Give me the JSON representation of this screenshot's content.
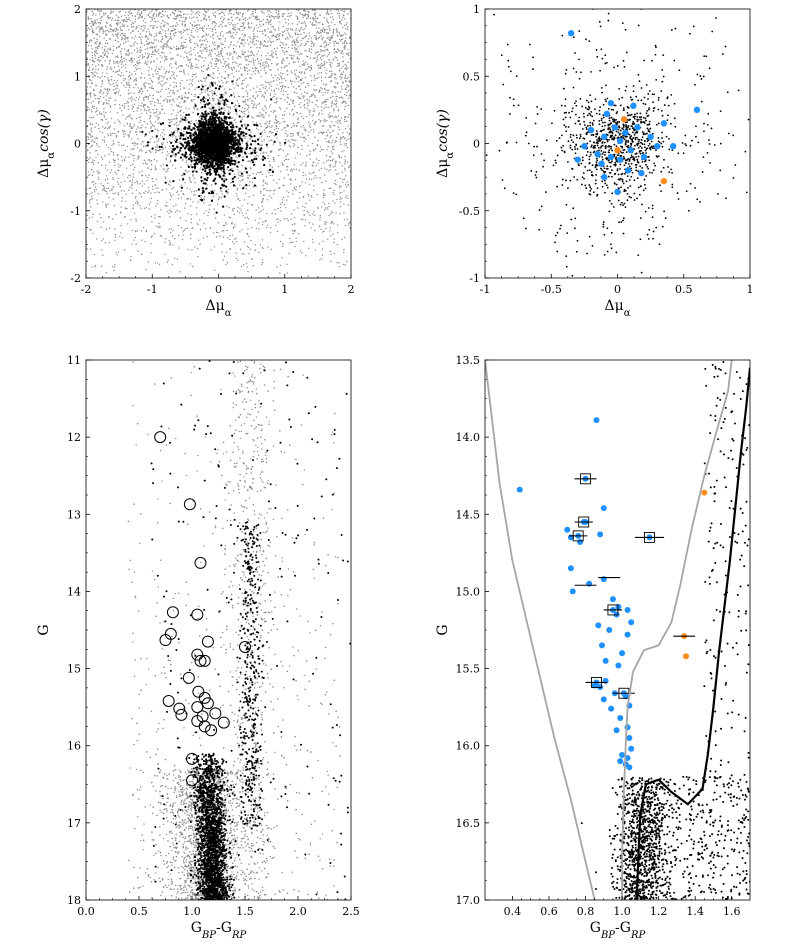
{
  "colors": {
    "field": "#8c8c8c",
    "member": "#000000",
    "blue": "#1e90ff",
    "orange": "#ff8c1a",
    "isochrone_gray": "#a6a6a6",
    "isochrone_black": "#000000"
  },
  "chart_data": [
    {
      "id": "p1",
      "type": "scatter",
      "xlabel": "Δμ_α",
      "ylabel": "Δμ_α cos(γ)",
      "xlim": [
        -2,
        2
      ],
      "ylim": [
        -2,
        2
      ],
      "xticks": [
        "-2",
        "-1",
        "0",
        "1",
        "2"
      ],
      "yticks": [
        "-2",
        "-1",
        "0",
        "1",
        "2"
      ],
      "series": [
        {
          "role": "field",
          "color": "#8c8c8c",
          "center": [
            0,
            0
          ],
          "spread": 2.2,
          "count": 5000,
          "uniform": true
        },
        {
          "role": "members",
          "color": "#000000",
          "center": [
            -0.08,
            0.0
          ],
          "spread": 0.28,
          "count": 2200
        }
      ]
    },
    {
      "id": "p2",
      "type": "scatter",
      "xlabel": "Δμ_α",
      "ylabel": "Δμ_α cos(γ)",
      "xlim": [
        -1,
        1
      ],
      "ylim": [
        -1,
        1
      ],
      "xticks": [
        "-1",
        "-0.5",
        "0",
        "0.5",
        "1"
      ],
      "yticks": [
        "-1",
        "-0.5",
        "0",
        "0.5",
        "1"
      ],
      "series": [
        {
          "role": "members",
          "color": "#000000",
          "center": [
            0,
            0
          ],
          "spread": 0.35,
          "count": 1100
        },
        {
          "role": "blue",
          "color": "#1e90ff",
          "points": [
            [
              -0.35,
              0.82
            ],
            [
              0.6,
              0.25
            ],
            [
              -0.1,
              0.05
            ],
            [
              -0.05,
              -0.1
            ],
            [
              0.02,
              0.02
            ],
            [
              0.1,
              -0.05
            ],
            [
              0.15,
              0.12
            ],
            [
              -0.15,
              -0.08
            ],
            [
              0.05,
              0.18
            ],
            [
              -0.08,
              0.22
            ],
            [
              0.2,
              -0.1
            ],
            [
              -0.2,
              0.1
            ],
            [
              0.08,
              -0.2
            ],
            [
              -0.12,
              -0.15
            ],
            [
              0.25,
              0.05
            ],
            [
              0.3,
              -0.02
            ],
            [
              -0.25,
              -0.02
            ],
            [
              0.0,
              -0.36
            ],
            [
              0.12,
              0.28
            ],
            [
              -0.05,
              0.3
            ],
            [
              0.35,
              0.15
            ],
            [
              -0.3,
              -0.12
            ],
            [
              0.18,
              -0.22
            ],
            [
              0.42,
              -0.02
            ],
            [
              -0.1,
              -0.25
            ],
            [
              0.02,
              -0.12
            ],
            [
              0.06,
              0.08
            ],
            [
              -0.02,
              0.12
            ]
          ]
        },
        {
          "role": "orange",
          "color": "#ff8c1a",
          "points": [
            [
              0.05,
              0.18
            ],
            [
              0.35,
              -0.28
            ],
            [
              0.0,
              -0.05
            ]
          ]
        }
      ]
    },
    {
      "id": "p3",
      "type": "scatter",
      "xlabel": "G_BP-G_RP",
      "ylabel": "G",
      "xlim": [
        0.0,
        2.5
      ],
      "ylim": [
        18,
        11
      ],
      "xticks": [
        "0.0",
        "0.5",
        "1.0",
        "1.5",
        "2.0",
        "2.5"
      ],
      "yticks": [
        "11",
        "12",
        "13",
        "14",
        "15",
        "16",
        "17",
        "18"
      ],
      "series": [
        {
          "role": "field",
          "color": "#8c8c8c",
          "count": 4500
        },
        {
          "role": "members",
          "color": "#000000",
          "count": 2600
        },
        {
          "role": "circled",
          "color": "#000000",
          "points": [
            [
              0.7,
              12.0
            ],
            [
              0.98,
              12.87
            ],
            [
              1.08,
              13.63
            ],
            [
              0.82,
              14.27
            ],
            [
              1.05,
              14.3
            ],
            [
              0.8,
              14.55
            ],
            [
              0.75,
              14.63
            ],
            [
              1.15,
              14.65
            ],
            [
              1.5,
              14.72
            ],
            [
              1.05,
              14.82
            ],
            [
              1.08,
              14.9
            ],
            [
              1.12,
              14.9
            ],
            [
              0.97,
              15.12
            ],
            [
              1.06,
              15.3
            ],
            [
              1.12,
              15.38
            ],
            [
              1.15,
              15.45
            ],
            [
              0.78,
              15.42
            ],
            [
              0.88,
              15.52
            ],
            [
              0.9,
              15.6
            ],
            [
              1.05,
              15.5
            ],
            [
              1.22,
              15.58
            ],
            [
              1.1,
              15.62
            ],
            [
              1.05,
              15.68
            ],
            [
              1.3,
              15.7
            ],
            [
              1.12,
              15.75
            ],
            [
              1.18,
              15.8
            ],
            [
              1.0,
              16.17
            ],
            [
              1.0,
              16.45
            ]
          ]
        }
      ]
    },
    {
      "id": "p4",
      "type": "scatter",
      "xlabel": "G_BP-G_RP",
      "ylabel": "G",
      "xlim": [
        0.25,
        1.7
      ],
      "ylim": [
        17.0,
        13.5
      ],
      "xticks": [
        "0.4",
        "0.6",
        "0.8",
        "1.0",
        "1.2",
        "1.4",
        "1.6"
      ],
      "yticks": [
        "13.5",
        "14.0",
        "14.5",
        "15.0",
        "15.5",
        "16.0",
        "16.5",
        "17.0"
      ],
      "series": [
        {
          "role": "members",
          "color": "#000000",
          "count": 1500
        },
        {
          "role": "blue",
          "color": "#1e90ff",
          "points": [
            [
              0.86,
              13.89
            ],
            [
              0.44,
              14.34
            ],
            [
              0.8,
              14.55
            ],
            [
              0.9,
              14.46
            ],
            [
              0.7,
              14.6
            ],
            [
              0.72,
              14.65
            ],
            [
              0.77,
              14.68
            ],
            [
              0.88,
              14.63
            ],
            [
              0.72,
              14.85
            ],
            [
              0.73,
              15.0
            ],
            [
              0.82,
              14.95
            ],
            [
              0.9,
              14.92
            ],
            [
              0.95,
              15.05
            ],
            [
              0.98,
              15.1
            ],
            [
              0.97,
              15.15
            ],
            [
              1.03,
              15.12
            ],
            [
              1.05,
              15.2
            ],
            [
              0.87,
              15.22
            ],
            [
              0.93,
              15.25
            ],
            [
              1.03,
              15.28
            ],
            [
              0.89,
              15.35
            ],
            [
              0.91,
              15.45
            ],
            [
              0.98,
              15.48
            ],
            [
              1.0,
              15.4
            ],
            [
              0.88,
              15.62
            ],
            [
              0.9,
              15.7
            ],
            [
              0.96,
              15.66
            ],
            [
              1.02,
              15.68
            ],
            [
              1.04,
              15.74
            ],
            [
              0.94,
              15.76
            ],
            [
              0.99,
              15.82
            ],
            [
              1.03,
              15.88
            ],
            [
              0.97,
              15.9
            ],
            [
              1.04,
              15.95
            ],
            [
              1.05,
              16.02
            ],
            [
              1.03,
              16.08
            ],
            [
              1.02,
              16.12
            ],
            [
              0.99,
              16.1
            ],
            [
              1.04,
              16.14
            ],
            [
              1.0,
              16.06
            ],
            [
              0.85,
              15.61
            ],
            [
              0.91,
              15.58
            ]
          ]
        },
        {
          "role": "orange",
          "color": "#ff8c1a",
          "points": [
            [
              1.45,
              14.36
            ],
            [
              1.34,
              15.29
            ],
            [
              1.35,
              15.42
            ]
          ]
        },
        {
          "role": "boxed",
          "color": "#1e90ff",
          "points": [
            [
              0.8,
              14.27
            ],
            [
              0.79,
              14.55
            ],
            [
              0.76,
              14.64
            ],
            [
              1.15,
              14.65
            ],
            [
              0.95,
              15.12
            ],
            [
              0.86,
              15.59
            ],
            [
              1.01,
              15.66
            ]
          ]
        },
        {
          "role": "errorbars",
          "points": [
            [
              0.8,
              14.27,
              0.06
            ],
            [
              0.79,
              14.55,
              0.05
            ],
            [
              0.76,
              14.64,
              0.05
            ],
            [
              1.15,
              14.65,
              0.08
            ],
            [
              0.95,
              15.12,
              0.05
            ],
            [
              0.86,
              15.59,
              0.06
            ],
            [
              1.01,
              15.66,
              0.06
            ],
            [
              0.8,
              14.96,
              0.06
            ],
            [
              0.93,
              14.91,
              0.06
            ],
            [
              1.34,
              15.29,
              0.06
            ]
          ]
        }
      ],
      "curves": [
        {
          "name": "",
          "color": "#a6a6a6",
          "points": [
            [
              0.25,
              13.5
            ],
            [
              0.28,
              13.8
            ],
            [
              0.33,
              14.3
            ],
            [
              0.4,
              14.8
            ],
            [
              0.48,
              15.2
            ],
            [
              0.55,
              15.55
            ],
            [
              0.63,
              15.95
            ],
            [
              0.72,
              16.35
            ],
            [
              0.8,
              16.75
            ],
            [
              0.85,
              17.0
            ]
          ]
        },
        {
          "name": "",
          "color": "#a6a6a6",
          "points": [
            [
              1.6,
              13.5
            ],
            [
              1.58,
              13.7
            ],
            [
              1.52,
              13.95
            ],
            [
              1.45,
              14.25
            ],
            [
              1.38,
              14.6
            ],
            [
              1.32,
              14.95
            ],
            [
              1.27,
              15.2
            ],
            [
              1.2,
              15.35
            ],
            [
              1.12,
              15.38
            ],
            [
              1.06,
              15.52
            ],
            [
              1.03,
              15.75
            ],
            [
              1.02,
              16.0
            ],
            [
              1.01,
              16.3
            ],
            [
              1.0,
              16.7
            ],
            [
              1.0,
              17.0
            ]
          ]
        },
        {
          "name": "",
          "color": "#000000",
          "points": [
            [
              1.7,
              13.55
            ],
            [
              1.68,
              13.8
            ],
            [
              1.65,
              14.1
            ],
            [
              1.62,
              14.45
            ],
            [
              1.59,
              14.8
            ],
            [
              1.56,
              15.1
            ],
            [
              1.53,
              15.4
            ],
            [
              1.5,
              15.75
            ],
            [
              1.47,
              16.05
            ],
            [
              1.44,
              16.28
            ],
            [
              1.36,
              16.38
            ],
            [
              1.27,
              16.3
            ],
            [
              1.2,
              16.22
            ],
            [
              1.13,
              16.25
            ],
            [
              1.1,
              16.45
            ],
            [
              1.09,
              16.7
            ],
            [
              1.08,
              17.0
            ]
          ]
        }
      ]
    }
  ]
}
